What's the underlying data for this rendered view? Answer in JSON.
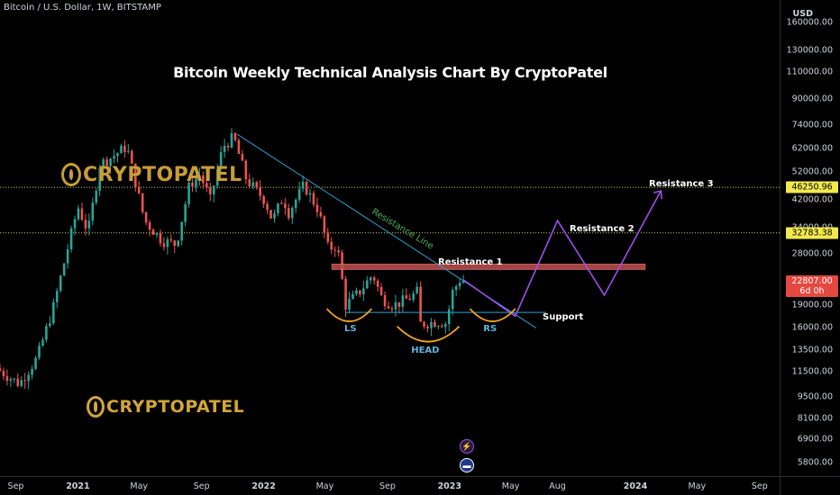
{
  "header": {
    "symbol_line": "Bitcoin / U.S. Dollar, 1W, BITSTAMP"
  },
  "watermark": {
    "brand": "CRYPTOPATEL"
  },
  "icons": {
    "bolt": "lightning-bolt-icon",
    "flag": "us-flag-icon"
  },
  "colors": {
    "background": "#000000",
    "up_candle": "#26a69a",
    "down_candle": "#ef5350",
    "resistance_zone": "#c0504d",
    "projection": "#a24df0",
    "trendline": "#2f9fd0",
    "arc": "#f5a623",
    "level_line": "#cddc39"
  },
  "chart_data": {
    "type": "candlestick",
    "title": "Bitcoin Weekly Technical Analysis Chart By CryptoPatel",
    "currency": "USD",
    "y_scale": "log",
    "ylim": [
      5200,
      190000
    ],
    "y_ticks": [
      "160000.00",
      "130000.00",
      "110000.00",
      "90000.00",
      "74000.00",
      "62000.00",
      "52000.00",
      "42000.00",
      "34000.00",
      "28000.00",
      "19000.00",
      "16000.00",
      "13500.00",
      "11500.00",
      "9500.00",
      "8100.00",
      "6900.00",
      "5800.00"
    ],
    "x_ticks": [
      {
        "label": "Sep",
        "date": "2020-09-01",
        "year": false
      },
      {
        "label": "2021",
        "date": "2021-01-01",
        "year": true
      },
      {
        "label": "May",
        "date": "2021-05-01",
        "year": false
      },
      {
        "label": "Sep",
        "date": "2021-09-01",
        "year": false
      },
      {
        "label": "2022",
        "date": "2022-01-01",
        "year": true
      },
      {
        "label": "May",
        "date": "2022-05-01",
        "year": false
      },
      {
        "label": "Sep",
        "date": "2022-09-01",
        "year": false
      },
      {
        "label": "2023",
        "date": "2023-01-01",
        "year": true
      },
      {
        "label": "May",
        "date": "2023-05-01",
        "year": false
      },
      {
        "label": "Aug",
        "date": "2023-08-01",
        "year": false
      },
      {
        "label": "2024",
        "date": "2024-01-01",
        "year": true
      },
      {
        "label": "May",
        "date": "2024-05-01",
        "year": false
      },
      {
        "label": "Sep",
        "date": "2024-09-01",
        "year": false
      }
    ],
    "price_tags": [
      {
        "value": 46250.96,
        "label": "46250.96",
        "style": "yellow"
      },
      {
        "value": 32783.38,
        "label": "32783.38",
        "style": "yellow"
      },
      {
        "value": 22807.0,
        "label": "22807.00",
        "sublabel": "6d 0h",
        "style": "red"
      }
    ],
    "close_path": [
      [
        "2020-08-01",
        11800
      ],
      [
        "2020-09-15",
        10500
      ],
      [
        "2020-10-20",
        12800
      ],
      [
        "2020-11-20",
        18500
      ],
      [
        "2021-01-08",
        40000
      ],
      [
        "2021-01-28",
        33000
      ],
      [
        "2021-02-20",
        55000
      ],
      [
        "2021-03-15",
        58000
      ],
      [
        "2021-04-14",
        63000
      ],
      [
        "2021-05-19",
        36000
      ],
      [
        "2021-06-22",
        31000
      ],
      [
        "2021-07-20",
        30000
      ],
      [
        "2021-08-15",
        47000
      ],
      [
        "2021-09-05",
        51000
      ],
      [
        "2021-09-25",
        42000
      ],
      [
        "2021-10-20",
        63000
      ],
      [
        "2021-11-10",
        67500
      ],
      [
        "2021-12-05",
        49000
      ],
      [
        "2022-01-10",
        42000
      ],
      [
        "2022-01-25",
        36000
      ],
      [
        "2022-02-15",
        43000
      ],
      [
        "2022-02-25",
        38000
      ],
      [
        "2022-03-28",
        47000
      ],
      [
        "2022-04-25",
        39000
      ],
      [
        "2022-05-15",
        29000
      ],
      [
        "2022-06-01",
        30000
      ],
      [
        "2022-06-18",
        19000
      ],
      [
        "2022-07-15",
        21000
      ],
      [
        "2022-08-10",
        24000
      ],
      [
        "2022-08-28",
        20000
      ],
      [
        "2022-09-20",
        19000
      ],
      [
        "2022-10-20",
        20000
      ],
      [
        "2022-11-05",
        21000
      ],
      [
        "2022-11-12",
        16500
      ],
      [
        "2022-12-15",
        16800
      ],
      [
        "2023-01-01",
        16600
      ],
      [
        "2023-01-14",
        21000
      ],
      [
        "2023-01-28",
        23000
      ],
      [
        "2023-02-03",
        22807
      ]
    ],
    "levels": [
      {
        "name": "Resistance 3",
        "value": 46250.96
      },
      {
        "name": "Resistance 2",
        "value": 32783.38
      }
    ],
    "resistance_zone": {
      "label": "Resistance 1",
      "low": 24900,
      "high": 25900
    },
    "support": {
      "label": "Support",
      "value": 18000
    },
    "resistance_line": {
      "label": "Resistance Line",
      "from": [
        "2021-11-10",
        69000
      ],
      "to": [
        "2023-06-20",
        16000
      ]
    },
    "projection": [
      [
        "2023-01-28",
        23000
      ],
      [
        "2023-05-10",
        17500
      ],
      [
        "2023-08-01",
        36000
      ],
      [
        "2023-11-01",
        20500
      ],
      [
        "2024-02-20",
        45000
      ]
    ],
    "pattern_labels": [
      {
        "label": "LS",
        "date": "2022-06-20",
        "value": 17000
      },
      {
        "label": "HEAD",
        "date": "2022-11-10",
        "value": 15000
      },
      {
        "label": "RS",
        "date": "2023-03-20",
        "value": 17000
      }
    ]
  }
}
